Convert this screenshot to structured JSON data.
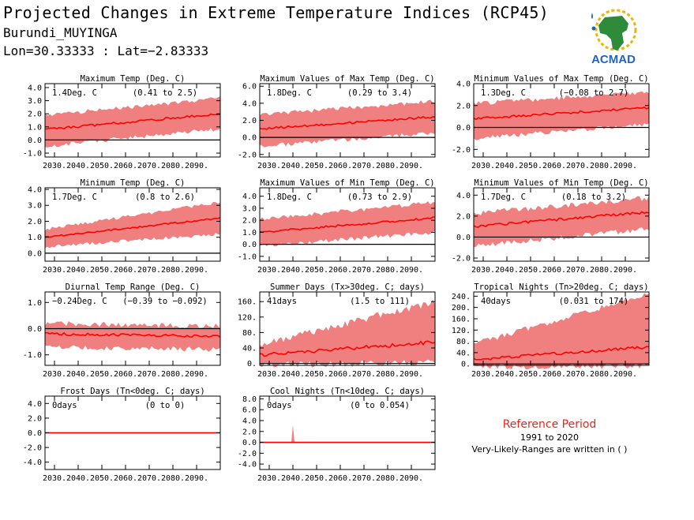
{
  "header": {
    "title": "Projected Changes in Extreme Temperature Indices (RCP45)",
    "location": "Burundi_MUYINGA",
    "coords": "Lon=30.33333 : Lat=−2.83333"
  },
  "logo": {
    "text": "ACMAD",
    "icon": "africa-map-logo-icon"
  },
  "reference": {
    "title": "Reference Period",
    "years": "1991 to 2020",
    "note": "Very-Likely-Ranges are written in ( )"
  },
  "colors": {
    "band": "#f08080",
    "median": "#ff0000",
    "zero_line": "#000000",
    "accent_title": "#e5261c"
  },
  "x_ticks": [
    "2030.",
    "2040.",
    "2050.",
    "2060.",
    "2070.",
    "2080.",
    "2090."
  ],
  "chart_data": [
    {
      "type": "area",
      "title": "Maximum Temp (Deg. C)",
      "value": "1.4Deg. C",
      "range": "(0.41 to 2.5)",
      "xlim": [
        2026,
        2100
      ],
      "ylim": [
        -1.3,
        4.3
      ],
      "yticks": [
        -1.0,
        0.0,
        1.0,
        2.0,
        3.0,
        4.0
      ],
      "ytick_labels": [
        "-1.0",
        "0.0",
        "1.0",
        "2.0",
        "3.0",
        "4.0"
      ],
      "median": {
        "start": 0.8,
        "end": 2.0
      },
      "band": {
        "lo_start": -0.3,
        "lo_end": 1.0,
        "hi_start": 1.7,
        "hi_end": 3.0,
        "jitter": 0.35
      }
    },
    {
      "type": "area",
      "title": "Maximum Values of Max Temp (Deg. C)",
      "value": "1.8Deg. C",
      "range": "(0.29 to 3.4)",
      "xlim": [
        2026,
        2100
      ],
      "ylim": [
        -2.3,
        6.3
      ],
      "yticks": [
        -2.0,
        0.0,
        2.0,
        4.0,
        6.0
      ],
      "ytick_labels": [
        "-2.0",
        "0.0",
        "2.0",
        "4.0",
        "6.0"
      ],
      "median": {
        "start": 1.0,
        "end": 2.4
      },
      "band": {
        "lo_start": -0.8,
        "lo_end": 0.8,
        "hi_start": 2.4,
        "hi_end": 4.0,
        "jitter": 0.5
      }
    },
    {
      "type": "area",
      "title": "Minimum Values of Max Temp (Deg. C)",
      "value": "1.3Deg. C",
      "range": "(−0.08 to 2.7)",
      "xlim": [
        2026,
        2100
      ],
      "ylim": [
        -2.7,
        4.0
      ],
      "yticks": [
        -2.0,
        0.0,
        2.0,
        4.0
      ],
      "ytick_labels": [
        "-2.0",
        "0.0",
        "2.0",
        "4.0"
      ],
      "median": {
        "start": 0.8,
        "end": 1.8
      },
      "band": {
        "lo_start": -0.8,
        "lo_end": 0.5,
        "hi_start": 2.0,
        "hi_end": 3.0,
        "jitter": 0.4
      }
    },
    {
      "type": "area",
      "title": "Minimum Temp (Deg. C)",
      "value": "1.7Deg. C",
      "range": "(0.8 to 2.6)",
      "xlim": [
        2026,
        2100
      ],
      "ylim": [
        -0.5,
        4.1
      ],
      "yticks": [
        0.0,
        1.0,
        2.0,
        3.0,
        4.0
      ],
      "ytick_labels": [
        "0.0",
        "1.0",
        "2.0",
        "3.0",
        "4.0"
      ],
      "median": {
        "start": 1.0,
        "end": 2.2
      },
      "band": {
        "lo_start": 0.5,
        "lo_end": 1.3,
        "hi_start": 1.4,
        "hi_end": 3.1,
        "jitter": 0.2
      }
    },
    {
      "type": "area",
      "title": "Maximum Values of Min Temp (Deg. C)",
      "value": "1.8Deg. C",
      "range": "(0.73 to 2.9)",
      "xlim": [
        2026,
        2100
      ],
      "ylim": [
        -1.4,
        4.7
      ],
      "yticks": [
        -1.0,
        0.0,
        1.0,
        2.0,
        3.0,
        4.0
      ],
      "ytick_labels": [
        "-1.0",
        "0.0",
        "1.0",
        "2.0",
        "3.0",
        "4.0"
      ],
      "median": {
        "start": 1.0,
        "end": 2.2
      },
      "band": {
        "lo_start": 0.0,
        "lo_end": 1.2,
        "hi_start": 1.9,
        "hi_end": 3.3,
        "jitter": 0.35
      }
    },
    {
      "type": "area",
      "title": "Minimum Values of Min Temp (Deg. C)",
      "value": "1.7Deg. C",
      "range": "(0.18 to 3.2)",
      "xlim": [
        2026,
        2100
      ],
      "ylim": [
        -2.3,
        4.7
      ],
      "yticks": [
        -2.0,
        0.0,
        2.0,
        4.0
      ],
      "ytick_labels": [
        "-2.0",
        "0.0",
        "2.0",
        "4.0"
      ],
      "median": {
        "start": 1.0,
        "end": 2.4
      },
      "band": {
        "lo_start": -0.6,
        "lo_end": 1.0,
        "hi_start": 2.0,
        "hi_end": 3.5,
        "jitter": 0.5
      }
    },
    {
      "type": "area",
      "title": "Diurnal Temp Range (Deg. C)",
      "value": "−0.24Deg. C",
      "range": "(−0.39 to −0.092)",
      "xlim": [
        2026,
        2100
      ],
      "ylim": [
        -1.4,
        1.4
      ],
      "yticks": [
        -1.0,
        0.0,
        1.0
      ],
      "ytick_labels": [
        "-1.0",
        "0.0",
        "1.0"
      ],
      "median": {
        "start": -0.2,
        "end": -0.3
      },
      "band": {
        "lo_start": -0.6,
        "lo_end": -0.7,
        "hi_start": 0.1,
        "hi_end": 0.0,
        "jitter": 0.2
      }
    },
    {
      "type": "area",
      "title": "Summer Days (Tx>30deg. C; days)",
      "value": "41days",
      "range": "(1.5 to 111)",
      "xlim": [
        2026,
        2100
      ],
      "ylim": [
        -5,
        185
      ],
      "yticks": [
        0,
        40,
        80,
        120,
        160
      ],
      "ytick_labels": [
        "0.",
        "40.",
        "80.",
        "120.",
        "160."
      ],
      "median": {
        "start": 22,
        "end": 55
      },
      "band": {
        "lo_start": 5,
        "lo_end": 12,
        "hi_start": 40,
        "hi_end": 150,
        "jitter": 18
      }
    },
    {
      "type": "area",
      "title": "Tropical Nights (Tn>20deg. C; days)",
      "value": "40days",
      "range": "(0.031 to 174)",
      "xlim": [
        2026,
        2100
      ],
      "ylim": [
        -5,
        255
      ],
      "yticks": [
        0,
        40,
        80,
        120,
        160,
        200,
        240
      ],
      "ytick_labels": [
        "0.",
        "40.",
        "80.",
        "120.",
        "160.",
        "200.",
        "240."
      ],
      "median": {
        "start": 15,
        "end": 60
      },
      "band": {
        "lo_start": 0,
        "lo_end": 2,
        "hi_start": 60,
        "hi_end": 240,
        "jitter": 20
      }
    },
    {
      "type": "area",
      "title": "Frost Days (Tn<0deg. C; days)",
      "value": "0days",
      "range": "(0 to 0)",
      "xlim": [
        2026,
        2100
      ],
      "ylim": [
        -5,
        5
      ],
      "yticks": [
        -4.0,
        -2.0,
        0.0,
        2.0,
        4.0
      ],
      "ytick_labels": [
        "-4.0",
        "-2.0",
        "0.0",
        "2.0",
        "4.0"
      ],
      "median": {
        "start": 0,
        "end": 0
      },
      "band": {
        "lo_start": 0,
        "lo_end": 0,
        "hi_start": 0,
        "hi_end": 0,
        "jitter": 0
      }
    },
    {
      "type": "area",
      "title": "Cool Nights (Tn<10deg. C; days)",
      "value": "0days",
      "range": "(0 to 0.054)",
      "xlim": [
        2026,
        2100
      ],
      "ylim": [
        -5,
        8.5
      ],
      "yticks": [
        -4.0,
        -2.0,
        0.0,
        2.0,
        4.0,
        6.0,
        8.0
      ],
      "ytick_labels": [
        "-4.0",
        "-2.0",
        "0.0",
        "2.0",
        "4.0",
        "6.0",
        "8.0"
      ],
      "median": {
        "start": 0,
        "end": 0
      },
      "band": {
        "lo_start": 0,
        "lo_end": 0,
        "hi_start": 0,
        "hi_end": 0,
        "jitter": 0
      },
      "spike": {
        "x": 2040,
        "value": 3.2
      }
    }
  ]
}
